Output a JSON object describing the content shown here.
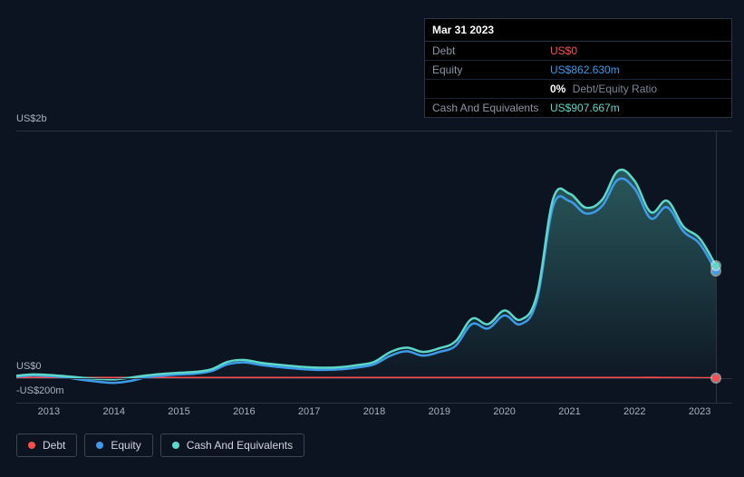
{
  "tooltip": {
    "date": "Mar 31 2023",
    "debt_label": "Debt",
    "debt_value": "US$0",
    "equity_label": "Equity",
    "equity_value": "US$862.630m",
    "ratio_pct": "0%",
    "ratio_label": "Debt/Equity Ratio",
    "cash_label": "Cash And Equivalents",
    "cash_value": "US$907.667m"
  },
  "chart": {
    "type": "area-line",
    "background_color": "#0d1421",
    "grid_color": "#2a3442",
    "text_color": "#a8b2c0",
    "y_axis": {
      "min": -200,
      "max": 2000,
      "ticks": [
        {
          "value": 2000,
          "label": "US$2b"
        },
        {
          "value": 0,
          "label": "US$0"
        },
        {
          "value": -200,
          "label": "-US$200m"
        }
      ]
    },
    "x_axis": {
      "min": 2012.5,
      "max": 2023.5,
      "ticks": [
        2013,
        2014,
        2015,
        2016,
        2017,
        2018,
        2019,
        2020,
        2021,
        2022,
        2023
      ]
    },
    "series": {
      "debt": {
        "label": "Debt",
        "color": "#ff4d4d",
        "line_width": 2,
        "data": [
          [
            2012.5,
            2
          ],
          [
            2013,
            2
          ],
          [
            2013.5,
            2
          ],
          [
            2014,
            2
          ],
          [
            2014.5,
            2
          ],
          [
            2015,
            2
          ],
          [
            2015.5,
            2
          ],
          [
            2016,
            2
          ],
          [
            2016.5,
            2
          ],
          [
            2017,
            2
          ],
          [
            2017.5,
            2
          ],
          [
            2018,
            2
          ],
          [
            2018.5,
            2
          ],
          [
            2019,
            2
          ],
          [
            2019.5,
            2
          ],
          [
            2020,
            2
          ],
          [
            2020.5,
            2
          ],
          [
            2021,
            2
          ],
          [
            2021.5,
            2
          ],
          [
            2022,
            2
          ],
          [
            2022.5,
            2
          ],
          [
            2023,
            0
          ],
          [
            2023.25,
            0
          ]
        ]
      },
      "equity": {
        "label": "Equity",
        "color": "#3d9be9",
        "line_width": 2.5,
        "data": [
          [
            2012.5,
            10
          ],
          [
            2012.75,
            20
          ],
          [
            2013,
            15
          ],
          [
            2013.25,
            5
          ],
          [
            2013.5,
            -15
          ],
          [
            2013.75,
            -30
          ],
          [
            2014,
            -40
          ],
          [
            2014.25,
            -25
          ],
          [
            2014.5,
            5
          ],
          [
            2014.75,
            18
          ],
          [
            2015,
            28
          ],
          [
            2015.25,
            35
          ],
          [
            2015.5,
            55
          ],
          [
            2015.75,
            110
          ],
          [
            2016,
            125
          ],
          [
            2016.25,
            105
          ],
          [
            2016.5,
            90
          ],
          [
            2016.75,
            78
          ],
          [
            2017,
            68
          ],
          [
            2017.25,
            65
          ],
          [
            2017.5,
            70
          ],
          [
            2017.75,
            85
          ],
          [
            2018,
            110
          ],
          [
            2018.25,
            180
          ],
          [
            2018.5,
            215
          ],
          [
            2018.75,
            180
          ],
          [
            2019,
            210
          ],
          [
            2019.25,
            260
          ],
          [
            2019.5,
            435
          ],
          [
            2019.75,
            400
          ],
          [
            2020,
            505
          ],
          [
            2020.25,
            435
          ],
          [
            2020.5,
            630
          ],
          [
            2020.75,
            1390
          ],
          [
            2021,
            1430
          ],
          [
            2021.25,
            1330
          ],
          [
            2021.5,
            1390
          ],
          [
            2021.75,
            1605
          ],
          [
            2022,
            1530
          ],
          [
            2022.25,
            1290
          ],
          [
            2022.5,
            1380
          ],
          [
            2022.75,
            1185
          ],
          [
            2023,
            1085
          ],
          [
            2023.25,
            862
          ]
        ]
      },
      "cash": {
        "label": "Cash And Equivalents",
        "color": "#5dd8c8",
        "area_gradient_top": "rgba(93,216,200,0.35)",
        "area_gradient_bottom": "rgba(93,216,200,0.02)",
        "line_width": 2.5,
        "data": [
          [
            2012.5,
            18
          ],
          [
            2012.75,
            28
          ],
          [
            2013,
            24
          ],
          [
            2013.25,
            14
          ],
          [
            2013.5,
            2
          ],
          [
            2013.75,
            -8
          ],
          [
            2014,
            -12
          ],
          [
            2014.25,
            2
          ],
          [
            2014.5,
            20
          ],
          [
            2014.75,
            33
          ],
          [
            2015,
            42
          ],
          [
            2015.25,
            49
          ],
          [
            2015.5,
            70
          ],
          [
            2015.75,
            130
          ],
          [
            2016,
            145
          ],
          [
            2016.25,
            123
          ],
          [
            2016.5,
            108
          ],
          [
            2016.75,
            96
          ],
          [
            2017,
            86
          ],
          [
            2017.25,
            82
          ],
          [
            2017.5,
            88
          ],
          [
            2017.75,
            104
          ],
          [
            2018,
            130
          ],
          [
            2018.25,
            210
          ],
          [
            2018.5,
            245
          ],
          [
            2018.75,
            210
          ],
          [
            2019,
            240
          ],
          [
            2019.25,
            296
          ],
          [
            2019.5,
            478
          ],
          [
            2019.75,
            435
          ],
          [
            2020,
            545
          ],
          [
            2020.25,
            471
          ],
          [
            2020.5,
            672
          ],
          [
            2020.75,
            1450
          ],
          [
            2021,
            1490
          ],
          [
            2021.25,
            1377
          ],
          [
            2021.5,
            1440
          ],
          [
            2021.75,
            1676
          ],
          [
            2022,
            1593
          ],
          [
            2022.25,
            1340
          ],
          [
            2022.5,
            1432
          ],
          [
            2022.75,
            1224
          ],
          [
            2023,
            1128
          ],
          [
            2023.25,
            908
          ]
        ]
      }
    },
    "legend_items": [
      {
        "key": "debt",
        "label": "Debt",
        "color": "#ff4d4d"
      },
      {
        "key": "equity",
        "label": "Equity",
        "color": "#3d9be9"
      },
      {
        "key": "cash",
        "label": "Cash And Equivalents",
        "color": "#5dd8c8"
      }
    ]
  }
}
